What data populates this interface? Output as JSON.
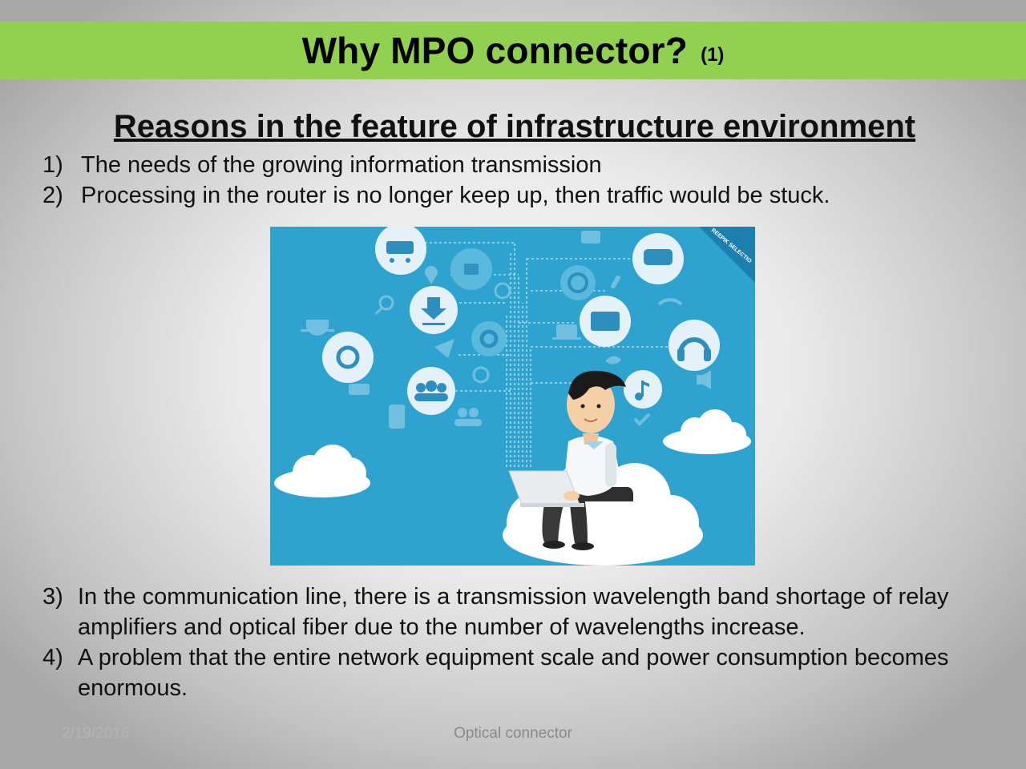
{
  "slide": {
    "title": "Why MPO connector?",
    "title_number": "(1)",
    "subtitle": "Reasons in the feature of infrastructure environment",
    "items_top": [
      {
        "num": "1)",
        "text": "The needs of the growing information transmission"
      },
      {
        "num": "2)",
        "text": "Processing in the router is no longer keep up, then traffic would be stuck."
      }
    ],
    "items_bottom": [
      {
        "num": "3)",
        "text": "In the communication line, there is a transmission wavelength band shortage of relay amplifiers and optical fiber due to the number of wavelengths increase."
      },
      {
        "num": "4)",
        "text": "A problem that the entire network equipment scale and power consumption becomes enormous."
      }
    ],
    "illustration_badge": "REEPIK SELECTIO",
    "footer": {
      "date": "2/19/2016",
      "center": "Optical connector"
    }
  },
  "colors": {
    "title_bar": "#92d050",
    "illustration_bg": "#2ea3cf"
  },
  "icons": [
    "cart-icon",
    "like-icon",
    "location-icon",
    "refresh-icon",
    "search-icon",
    "download-icon",
    "send-icon",
    "settings-icon",
    "cup-icon",
    "at-icon",
    "chat-icon",
    "group-icon",
    "phone-icon",
    "people-icon",
    "camera-icon",
    "message-icon",
    "globe-icon",
    "attach-icon",
    "wifi-icon",
    "laptop-icon",
    "mail-icon",
    "headphones-icon",
    "bird-icon",
    "music-icon",
    "volume-icon",
    "check-icon"
  ]
}
